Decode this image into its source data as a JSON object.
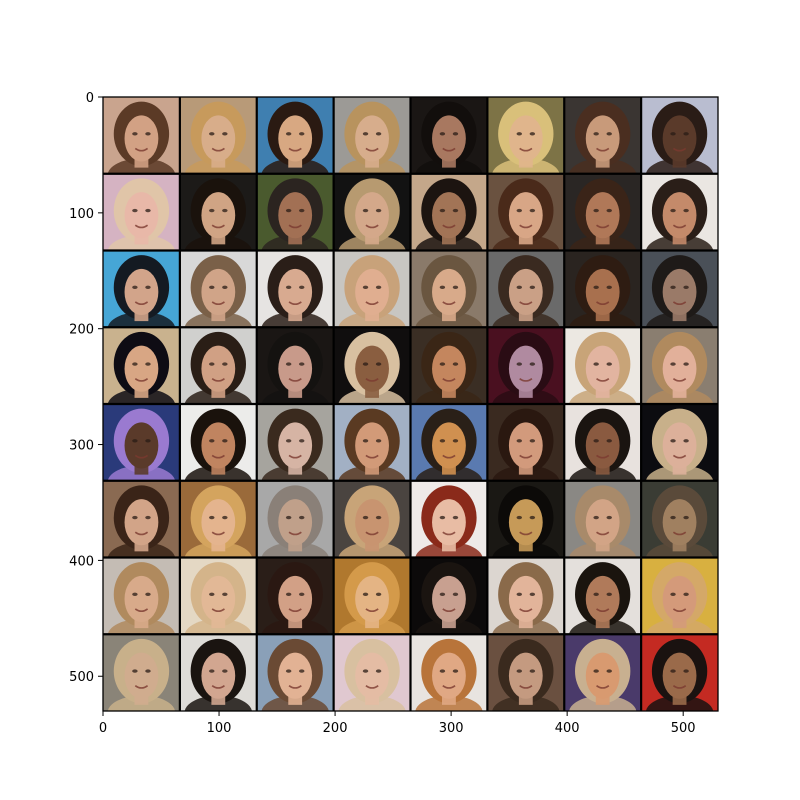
{
  "image_grid": {
    "rows": 8,
    "cols": 8,
    "x_ticks": [
      "0",
      "100",
      "200",
      "300",
      "400",
      "500"
    ],
    "y_ticks": [
      "0",
      "100",
      "200",
      "300",
      "400",
      "500"
    ],
    "x_tick_values": [
      0,
      100,
      200,
      300,
      400,
      500
    ],
    "y_tick_values": [
      0,
      100,
      200,
      300,
      400,
      500
    ],
    "extent": [
      530,
      530
    ],
    "tiles": [
      {
        "bg": "#c9a48e",
        "hair": "#5b3a26",
        "skin": "#d2a184"
      },
      {
        "bg": "#b89a78",
        "hair": "#c79a5c",
        "skin": "#d8ad8a"
      },
      {
        "bg": "#3f7fb0",
        "hair": "#2a1a12",
        "skin": "#d8a882"
      },
      {
        "bg": "#9c9a96",
        "hair": "#b8935e",
        "skin": "#d7ad8c"
      },
      {
        "bg": "#1a1614",
        "hair": "#120e0c",
        "skin": "#a87860"
      },
      {
        "bg": "#7d7346",
        "hair": "#d9c07a",
        "skin": "#e0b58c"
      },
      {
        "bg": "#3a3532",
        "hair": "#4a2e20",
        "skin": "#c89a7a"
      },
      {
        "bg": "#b9bdd0",
        "hair": "#2a1c16",
        "skin": "#5a3a2a"
      },
      {
        "bg": "#d5b3c2",
        "hair": "#e0c5a8",
        "skin": "#e8b8a8"
      },
      {
        "bg": "#1c1a18",
        "hair": "#1a120c",
        "skin": "#d0a484"
      },
      {
        "bg": "#4a5a2e",
        "hair": "#2b2420",
        "skin": "#a27054"
      },
      {
        "bg": "#121212",
        "hair": "#b79a70",
        "skin": "#d4a88a"
      },
      {
        "bg": "#c4a78a",
        "hair": "#1c1410",
        "skin": "#a27456"
      },
      {
        "bg": "#6a5240",
        "hair": "#4a2a1a",
        "skin": "#d8a686"
      },
      {
        "bg": "#2a2624",
        "hair": "#3a2418",
        "skin": "#b07858"
      },
      {
        "bg": "#eae6e2",
        "hair": "#2a1e18",
        "skin": "#c48a6a"
      },
      {
        "bg": "#46a6d6",
        "hair": "#141a22",
        "skin": "#d2a48a"
      },
      {
        "bg": "#d8d8d8",
        "hair": "#7a6048",
        "skin": "#d0a488"
      },
      {
        "bg": "#e6e4e2",
        "hair": "#2a1e18",
        "skin": "#d8aa90"
      },
      {
        "bg": "#c8c6c2",
        "hair": "#c8a27a",
        "skin": "#e0ae90"
      },
      {
        "bg": "#8a7a6a",
        "hair": "#6a5640",
        "skin": "#d8aa8a"
      },
      {
        "bg": "#6a6a6a",
        "hair": "#3a2a20",
        "skin": "#caa086"
      },
      {
        "bg": "#2a2420",
        "hair": "#2e1c12",
        "skin": "#a8704e"
      },
      {
        "bg": "#4a5058",
        "hair": "#1e1a18",
        "skin": "#9a7a68"
      },
      {
        "bg": "#c9b28e",
        "hair": "#0e0c14",
        "skin": "#d8a684"
      },
      {
        "bg": "#d0d0ce",
        "hair": "#2a1e16",
        "skin": "#d0a084"
      },
      {
        "bg": "#1a1614",
        "hair": "#141210",
        "skin": "#c89a8a"
      },
      {
        "bg": "#100e0e",
        "hair": "#d8c0a0",
        "skin": "#8a5e40"
      },
      {
        "bg": "#3a2e24",
        "hair": "#3a2616",
        "skin": "#c4865e"
      },
      {
        "bg": "#4a1020",
        "hair": "#2a0c14",
        "skin": "#b08aa0"
      },
      {
        "bg": "#ece8e2",
        "hair": "#c8a478",
        "skin": "#e2b4a0"
      },
      {
        "bg": "#8a7e70",
        "hair": "#b08a5e",
        "skin": "#e2b09a"
      },
      {
        "bg": "#2a3a7a",
        "hair": "#9a7ad0",
        "skin": "#5a3a2a"
      },
      {
        "bg": "#ececea",
        "hair": "#1a120c",
        "skin": "#c08460"
      },
      {
        "bg": "#a6a49e",
        "hair": "#3a2a1e",
        "skin": "#d6b4a4"
      },
      {
        "bg": "#a2b0c4",
        "hair": "#5a3a22",
        "skin": "#d29a78"
      },
      {
        "bg": "#5a7ab0",
        "hair": "#2a2018",
        "skin": "#d09050"
      },
      {
        "bg": "#3a2a20",
        "hair": "#2a1810",
        "skin": "#d29a7c"
      },
      {
        "bg": "#e8e2de",
        "hair": "#1a1410",
        "skin": "#8a5a40"
      },
      {
        "bg": "#0c0c10",
        "hair": "#c8b08a",
        "skin": "#dcb09a"
      },
      {
        "bg": "#8a6a52",
        "hair": "#3a2418",
        "skin": "#d2a488"
      },
      {
        "bg": "#9a6a3a",
        "hair": "#d4a45e",
        "skin": "#e4b48e"
      },
      {
        "bg": "#a8a8a8",
        "hair": "#8a8078",
        "skin": "#c0a08a"
      },
      {
        "bg": "#4a4440",
        "hair": "#c8a478",
        "skin": "#c89470"
      },
      {
        "bg": "#eeeae8",
        "hair": "#8a2a1a",
        "skin": "#e8bca4"
      },
      {
        "bg": "#1a1814",
        "hair": "#0c0a08",
        "skin": "#c69a58"
      },
      {
        "bg": "#8a8884",
        "hair": "#a88a6a",
        "skin": "#d2a486"
      },
      {
        "bg": "#3a3c34",
        "hair": "#5a4a3a",
        "skin": "#a08060"
      },
      {
        "bg": "#c4bcb4",
        "hair": "#b08a5e",
        "skin": "#d8aa8a"
      },
      {
        "bg": "#e4d8c4",
        "hair": "#d4b48a",
        "skin": "#e2b896"
      },
      {
        "bg": "#2a1e18",
        "hair": "#2a1812",
        "skin": "#d2a086"
      },
      {
        "bg": "#b0782e",
        "hair": "#d49a4a",
        "skin": "#e4b484"
      },
      {
        "bg": "#0c0a0a",
        "hair": "#1a1410",
        "skin": "#c8a090"
      },
      {
        "bg": "#dcd6d0",
        "hair": "#8a6a4a",
        "skin": "#e2b49a"
      },
      {
        "bg": "#e4e0dc",
        "hair": "#1a140e",
        "skin": "#b07a5a"
      },
      {
        "bg": "#d8b040",
        "hair": "#d4a868",
        "skin": "#d49a7a"
      },
      {
        "bg": "#8a8478",
        "hair": "#c8b08a",
        "skin": "#d0ac8e"
      },
      {
        "bg": "#dedcd8",
        "hair": "#1a1410",
        "skin": "#d2a690"
      },
      {
        "bg": "#8aa0b8",
        "hair": "#6a4a34",
        "skin": "#e2b294"
      },
      {
        "bg": "#e0c8d0",
        "hair": "#d8c0a0",
        "skin": "#e4bca4"
      },
      {
        "bg": "#e8e4e0",
        "hair": "#b8743a",
        "skin": "#e0a884"
      },
      {
        "bg": "#6a5040",
        "hair": "#3a2a1e",
        "skin": "#c49a80"
      },
      {
        "bg": "#4a3a6a",
        "hair": "#c8b090",
        "skin": "#d89a70"
      },
      {
        "bg": "#c42a22",
        "hair": "#1a1210",
        "skin": "#9a6a4a"
      }
    ]
  }
}
